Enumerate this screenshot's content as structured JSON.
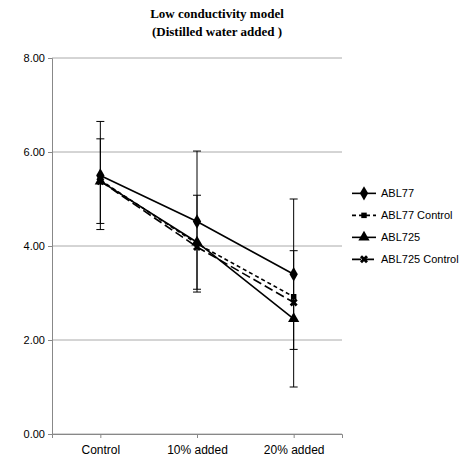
{
  "chart_data": {
    "type": "line",
    "title": "Low conductivity model",
    "subtitle": "(Distilled water added )",
    "categories": [
      "Control",
      "10% added",
      "20% added"
    ],
    "series": [
      {
        "name": "ABL77",
        "color": "#000000",
        "marker": "diamond",
        "line_style": "solid",
        "values": [
          5.5,
          4.52,
          3.4
        ],
        "errors": [
          1.15,
          1.5,
          1.6
        ]
      },
      {
        "name": "ABL77 Control",
        "color": "#000000",
        "marker": "square",
        "line_style": "dashed",
        "values": [
          5.4,
          4.05,
          2.92
        ]
      },
      {
        "name": "ABL725",
        "color": "#000000",
        "marker": "triangle",
        "line_style": "solid",
        "values": [
          5.38,
          4.08,
          2.45
        ],
        "errors": [
          0.9,
          1.0,
          1.45
        ]
      },
      {
        "name": "ABL725 Control",
        "color": "#000000",
        "marker": "cross",
        "line_style": "longdash",
        "values": [
          5.38,
          3.98,
          2.8
        ]
      }
    ],
    "ylim": [
      0,
      8
    ],
    "yticks": [
      {
        "value": 0,
        "label": "0.00"
      },
      {
        "value": 2,
        "label": "2.00"
      },
      {
        "value": 4,
        "label": "4.00"
      },
      {
        "value": 6,
        "label": "6.00"
      },
      {
        "value": 8,
        "label": "8.00"
      }
    ],
    "grid": true,
    "legend": "right"
  }
}
